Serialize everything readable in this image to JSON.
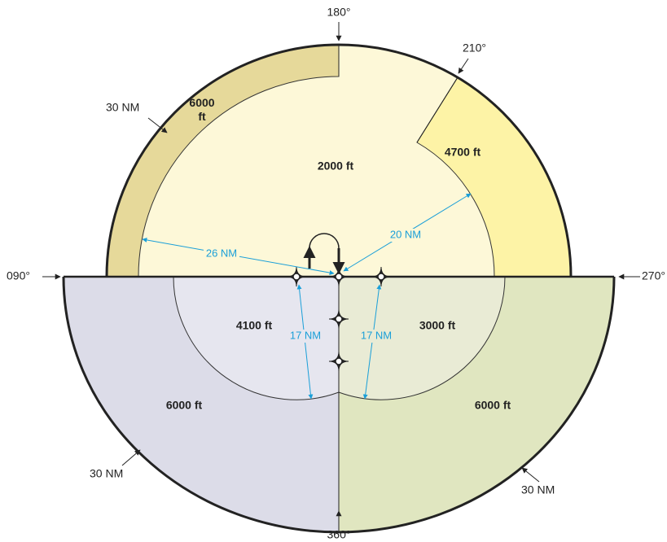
{
  "bearings": [
    "180°",
    "210°",
    "090°",
    "270°",
    "360°"
  ],
  "outer_radii": [
    "30 NM",
    "30 NM",
    "30 NM"
  ],
  "sectors": [
    "6000 ft",
    "2000 ft",
    "4700 ft",
    "4100 ft",
    "3000 ft",
    "6000 ft",
    "6000 ft"
  ],
  "radii": [
    "26 NM",
    "20 NM",
    "17 NM",
    "17 NM"
  ]
}
